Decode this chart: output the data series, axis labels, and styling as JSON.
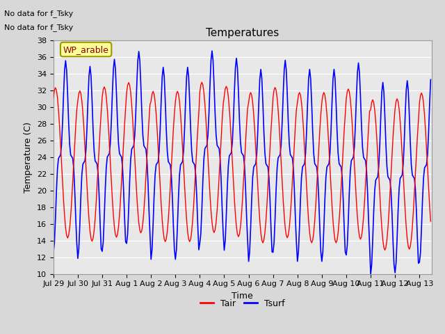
{
  "title": "Temperatures",
  "xlabel": "Time",
  "ylabel": "Temperature (C)",
  "ylim": [
    10,
    38
  ],
  "yticks": [
    10,
    12,
    14,
    16,
    18,
    20,
    22,
    24,
    26,
    28,
    30,
    32,
    34,
    36,
    38
  ],
  "annotation_lines": [
    "No data for f_Tsky",
    "No data for f_Tsky"
  ],
  "legend_label": "WP_arable",
  "tair_color": "#FF0000",
  "tsurf_color": "#0000FF",
  "background_color": "#D8D8D8",
  "plot_bg_color": "#E8E8E8",
  "grid_color": "#FFFFFF",
  "legend_entries": [
    "Tair",
    "Tsurf"
  ],
  "total_days": 15.5,
  "xtick_labels": [
    "Jul 29",
    "Jul 30",
    "Jul 31",
    "Aug 1",
    "Aug 2",
    "Aug 3",
    "Aug 4",
    "Aug 5",
    "Aug 6",
    "Aug 7",
    "Aug 8",
    "Aug 9",
    "Aug 10",
    "Aug 11",
    "Aug 12",
    "Aug 13"
  ],
  "tair_base": 23.0,
  "tair_amplitude": 9.0,
  "tsurf_base": 23.5,
  "tsurf_amplitude": 11.5,
  "tsurf_sharpness": 3.0
}
